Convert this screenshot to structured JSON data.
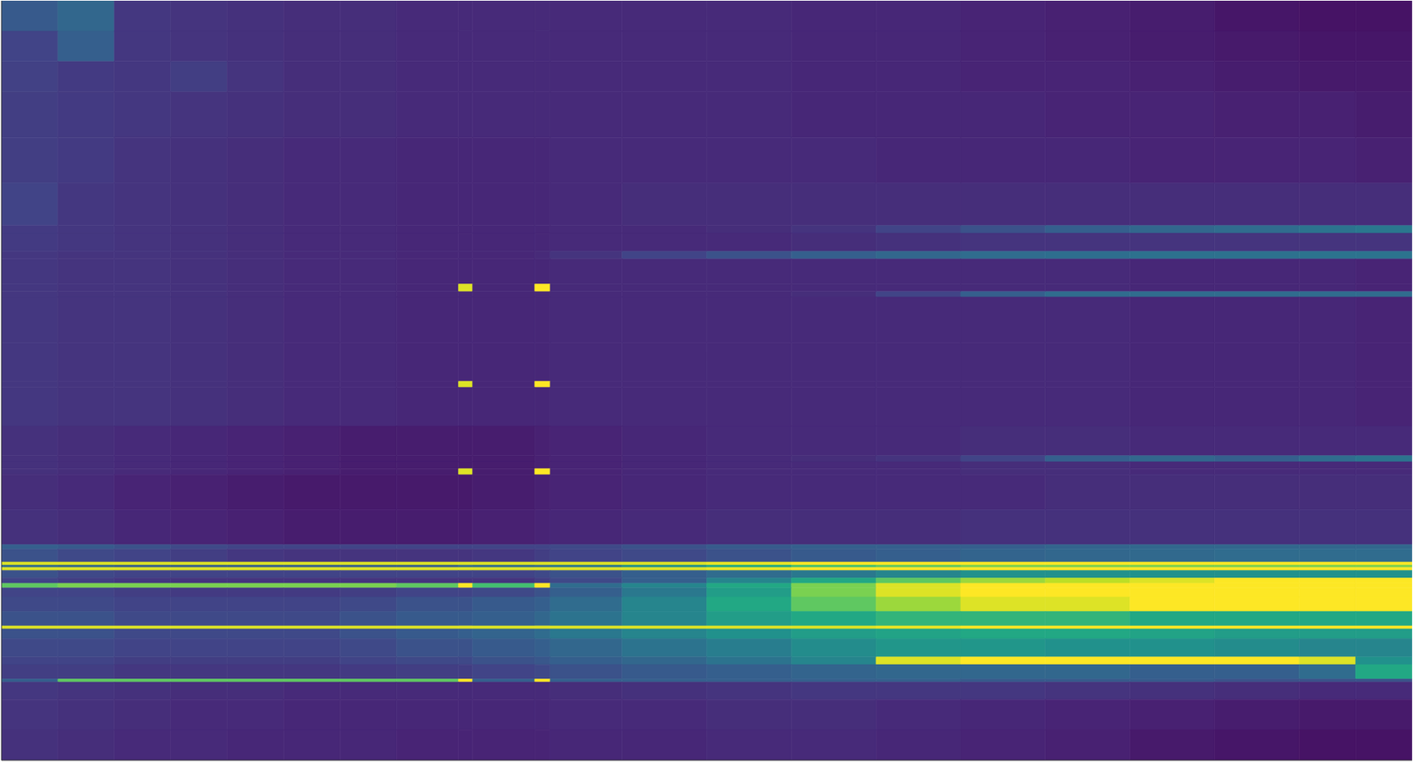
{
  "chart_data": {
    "type": "heatmap",
    "color": "viridis",
    "tick_labels": false,
    "xlim": [
      0,
      100
    ],
    "ylim": [
      0,
      100
    ],
    "zlim": [
      0,
      1
    ],
    "x_edges": [
      0,
      4,
      8,
      12,
      16,
      20,
      24,
      28,
      32.4,
      33.4,
      37.8,
      38.9,
      44,
      50,
      56,
      62,
      68,
      74,
      80,
      86,
      92,
      96,
      100
    ],
    "y_edges": [
      0,
      4,
      8,
      12,
      18,
      24,
      29.6,
      30.6,
      33,
      34,
      37.3,
      38.3,
      39,
      45,
      50.1,
      50.9,
      56,
      59.9,
      60.7,
      61.6,
      62.4,
      67,
      71.6,
      72.2,
      73.9,
      74.3,
      74.6,
      75,
      76,
      76.7,
      77.3,
      78.5,
      80.4,
      82.3,
      82.7,
      84,
      86.4,
      87.4,
      89.3,
      89.7,
      92,
      96,
      100
    ],
    "values": [
      [
        0.28,
        0.33,
        0.16,
        0.15,
        0.14,
        0.13,
        0.13,
        0.12,
        0.12,
        0.12,
        0.12,
        0.12,
        0.12,
        0.12,
        0.11,
        0.11,
        0.1,
        0.09,
        0.08,
        0.06,
        0.05,
        0.05
      ],
      [
        0.2,
        0.3,
        0.16,
        0.15,
        0.14,
        0.13,
        0.13,
        0.12,
        0.12,
        0.12,
        0.12,
        0.12,
        0.12,
        0.12,
        0.11,
        0.11,
        0.1,
        0.09,
        0.08,
        0.07,
        0.06,
        0.06
      ],
      [
        0.19,
        0.17,
        0.16,
        0.18,
        0.15,
        0.13,
        0.13,
        0.12,
        0.12,
        0.12,
        0.12,
        0.12,
        0.12,
        0.12,
        0.11,
        0.11,
        0.1,
        0.1,
        0.09,
        0.08,
        0.07,
        0.07
      ],
      [
        0.18,
        0.17,
        0.16,
        0.15,
        0.14,
        0.13,
        0.13,
        0.12,
        0.12,
        0.12,
        0.12,
        0.12,
        0.12,
        0.12,
        0.11,
        0.11,
        0.11,
        0.1,
        0.1,
        0.09,
        0.09,
        0.08
      ],
      [
        0.18,
        0.17,
        0.15,
        0.14,
        0.13,
        0.12,
        0.12,
        0.11,
        0.11,
        0.11,
        0.11,
        0.12,
        0.12,
        0.12,
        0.12,
        0.11,
        0.11,
        0.11,
        0.1,
        0.1,
        0.1,
        0.09
      ],
      [
        0.2,
        0.16,
        0.15,
        0.14,
        0.13,
        0.12,
        0.12,
        0.11,
        0.11,
        0.11,
        0.11,
        0.12,
        0.13,
        0.13,
        0.13,
        0.13,
        0.13,
        0.13,
        0.13,
        0.13,
        0.13,
        0.13
      ],
      [
        0.17,
        0.16,
        0.15,
        0.14,
        0.13,
        0.12,
        0.12,
        0.11,
        0.11,
        0.11,
        0.11,
        0.12,
        0.12,
        0.13,
        0.15,
        0.2,
        0.25,
        0.3,
        0.33,
        0.35,
        0.38,
        0.4
      ],
      [
        0.17,
        0.16,
        0.15,
        0.14,
        0.13,
        0.12,
        0.12,
        0.11,
        0.11,
        0.11,
        0.11,
        0.12,
        0.12,
        0.12,
        0.13,
        0.14,
        0.15,
        0.15,
        0.15,
        0.15,
        0.15,
        0.15
      ],
      [
        0.16,
        0.15,
        0.15,
        0.14,
        0.13,
        0.12,
        0.12,
        0.11,
        0.11,
        0.11,
        0.12,
        0.15,
        0.2,
        0.25,
        0.3,
        0.33,
        0.35,
        0.36,
        0.37,
        0.37,
        0.38,
        0.38
      ],
      [
        0.16,
        0.15,
        0.15,
        0.14,
        0.13,
        0.12,
        0.12,
        0.11,
        0.11,
        0.11,
        0.11,
        0.12,
        0.12,
        0.12,
        0.12,
        0.12,
        0.12,
        0.12,
        0.11,
        0.11,
        0.11,
        0.1
      ],
      [
        0.16,
        0.15,
        0.15,
        0.14,
        0.13,
        0.12,
        0.12,
        0.11,
        0.95,
        0.11,
        1,
        0.12,
        0.12,
        0.12,
        0.12,
        0.12,
        0.12,
        0.12,
        0.11,
        0.11,
        0.11,
        0.1
      ],
      [
        0.16,
        0.15,
        0.15,
        0.14,
        0.13,
        0.12,
        0.12,
        0.11,
        0.11,
        0.11,
        0.11,
        0.12,
        0.12,
        0.12,
        0.13,
        0.2,
        0.3,
        0.35,
        0.35,
        0.35,
        0.35,
        0.35
      ],
      [
        0.16,
        0.15,
        0.15,
        0.14,
        0.13,
        0.12,
        0.12,
        0.11,
        0.11,
        0.11,
        0.11,
        0.12,
        0.12,
        0.12,
        0.12,
        0.12,
        0.12,
        0.12,
        0.11,
        0.11,
        0.11,
        0.1
      ],
      [
        0.16,
        0.15,
        0.15,
        0.14,
        0.13,
        0.12,
        0.12,
        0.11,
        0.11,
        0.11,
        0.11,
        0.12,
        0.12,
        0.12,
        0.12,
        0.12,
        0.12,
        0.12,
        0.11,
        0.11,
        0.11,
        0.1
      ],
      [
        0.16,
        0.15,
        0.15,
        0.14,
        0.13,
        0.12,
        0.12,
        0.11,
        0.95,
        0.11,
        1,
        0.12,
        0.12,
        0.12,
        0.12,
        0.12,
        0.12,
        0.12,
        0.11,
        0.11,
        0.11,
        0.1
      ],
      [
        0.16,
        0.15,
        0.15,
        0.14,
        0.13,
        0.12,
        0.12,
        0.11,
        0.11,
        0.11,
        0.11,
        0.12,
        0.12,
        0.12,
        0.12,
        0.12,
        0.12,
        0.12,
        0.11,
        0.11,
        0.11,
        0.1
      ],
      [
        0.14,
        0.13,
        0.12,
        0.11,
        0.1,
        0.09,
        0.08,
        0.08,
        0.08,
        0.08,
        0.09,
        0.1,
        0.11,
        0.12,
        0.12,
        0.12,
        0.13,
        0.13,
        0.12,
        0.12,
        0.12,
        0.12
      ],
      [
        0.14,
        0.13,
        0.12,
        0.11,
        0.1,
        0.09,
        0.08,
        0.08,
        0.08,
        0.08,
        0.09,
        0.1,
        0.11,
        0.12,
        0.13,
        0.15,
        0.2,
        0.3,
        0.33,
        0.3,
        0.35,
        0.38
      ],
      [
        0.14,
        0.13,
        0.12,
        0.11,
        0.1,
        0.09,
        0.08,
        0.08,
        0.08,
        0.08,
        0.09,
        0.1,
        0.11,
        0.12,
        0.12,
        0.12,
        0.13,
        0.13,
        0.12,
        0.12,
        0.12,
        0.12
      ],
      [
        0.14,
        0.13,
        0.12,
        0.11,
        0.1,
        0.09,
        0.08,
        0.08,
        0.95,
        0.08,
        1,
        0.1,
        0.11,
        0.12,
        0.12,
        0.12,
        0.13,
        0.13,
        0.12,
        0.12,
        0.12,
        0.12
      ],
      [
        0.13,
        0.12,
        0.1,
        0.09,
        0.08,
        0.07,
        0.07,
        0.07,
        0.07,
        0.08,
        0.09,
        0.1,
        0.11,
        0.12,
        0.12,
        0.12,
        0.12,
        0.13,
        0.13,
        0.13,
        0.13,
        0.13
      ],
      [
        0.14,
        0.13,
        0.11,
        0.1,
        0.09,
        0.08,
        0.08,
        0.08,
        0.08,
        0.09,
        0.1,
        0.11,
        0.12,
        0.13,
        0.13,
        0.13,
        0.14,
        0.14,
        0.14,
        0.14,
        0.14,
        0.14
      ],
      [
        0.3,
        0.28,
        0.25,
        0.22,
        0.2,
        0.2,
        0.2,
        0.2,
        0.2,
        0.2,
        0.2,
        0.22,
        0.25,
        0.28,
        0.3,
        0.3,
        0.3,
        0.32,
        0.33,
        0.33,
        0.33,
        0.33
      ],
      [
        0.25,
        0.22,
        0.2,
        0.18,
        0.16,
        0.15,
        0.15,
        0.15,
        0.15,
        0.16,
        0.18,
        0.2,
        0.22,
        0.25,
        0.28,
        0.3,
        0.32,
        0.33,
        0.34,
        0.35,
        0.35,
        0.35
      ],
      [
        0.95,
        0.95,
        0.95,
        0.95,
        0.95,
        0.95,
        0.95,
        0.95,
        0.95,
        0.95,
        0.95,
        0.95,
        0.95,
        0.97,
        1,
        1,
        1,
        1,
        1,
        1,
        1,
        1
      ],
      [
        0.35,
        0.33,
        0.3,
        0.3,
        0.3,
        0.3,
        0.3,
        0.3,
        0.35,
        0.35,
        0.35,
        0.4,
        0.5,
        0.6,
        0.7,
        0.75,
        0.8,
        0.8,
        0.8,
        0.8,
        0.8,
        0.8
      ],
      [
        0.95,
        0.95,
        0.95,
        0.95,
        0.95,
        0.95,
        0.95,
        0.95,
        0.95,
        0.95,
        0.95,
        0.95,
        0.95,
        0.97,
        1,
        1,
        1,
        1,
        1,
        1,
        1,
        1
      ],
      [
        0.25,
        0.22,
        0.2,
        0.2,
        0.2,
        0.2,
        0.2,
        0.2,
        0.2,
        0.2,
        0.22,
        0.25,
        0.3,
        0.35,
        0.4,
        0.45,
        0.5,
        0.5,
        0.5,
        0.5,
        0.5,
        0.5
      ],
      [
        0.2,
        0.18,
        0.16,
        0.15,
        0.15,
        0.15,
        0.15,
        0.15,
        0.15,
        0.15,
        0.18,
        0.22,
        0.3,
        0.45,
        0.6,
        0.75,
        0.85,
        0.9,
        0.95,
        1,
        1,
        1
      ],
      [
        0.75,
        0.8,
        0.8,
        0.8,
        0.8,
        0.8,
        0.8,
        0.75,
        1,
        0.7,
        1,
        0.35,
        0.45,
        0.6,
        0.8,
        0.95,
        1,
        1,
        1,
        1,
        1,
        1
      ],
      [
        0.2,
        0.2,
        0.18,
        0.17,
        0.17,
        0.17,
        0.18,
        0.2,
        0.2,
        0.22,
        0.25,
        0.3,
        0.4,
        0.55,
        0.8,
        0.95,
        1,
        1,
        1,
        1,
        1,
        1
      ],
      [
        0.22,
        0.22,
        0.2,
        0.2,
        0.2,
        0.2,
        0.22,
        0.25,
        0.25,
        0.28,
        0.3,
        0.35,
        0.45,
        0.6,
        0.75,
        0.85,
        0.95,
        0.95,
        1,
        1,
        1,
        1
      ],
      [
        0.25,
        0.25,
        0.22,
        0.22,
        0.22,
        0.22,
        0.25,
        0.28,
        0.28,
        0.3,
        0.33,
        0.38,
        0.45,
        0.55,
        0.6,
        0.65,
        0.65,
        0.65,
        0.6,
        0.6,
        0.6,
        0.6
      ],
      [
        0.95,
        0.95,
        0.95,
        0.95,
        0.95,
        0.95,
        0.95,
        0.95,
        0.95,
        0.95,
        0.95,
        0.95,
        0.95,
        0.95,
        0.95,
        0.97,
        1,
        1,
        1,
        1,
        1,
        1
      ],
      [
        0.25,
        0.25,
        0.22,
        0.22,
        0.22,
        0.22,
        0.25,
        0.28,
        0.3,
        0.32,
        0.35,
        0.4,
        0.45,
        0.5,
        0.55,
        0.58,
        0.6,
        0.6,
        0.58,
        0.55,
        0.55,
        0.55
      ],
      [
        0.22,
        0.22,
        0.2,
        0.2,
        0.2,
        0.2,
        0.22,
        0.25,
        0.25,
        0.28,
        0.3,
        0.33,
        0.38,
        0.42,
        0.48,
        0.52,
        0.52,
        0.5,
        0.5,
        0.48,
        0.45,
        0.45
      ],
      [
        0.2,
        0.2,
        0.18,
        0.18,
        0.18,
        0.18,
        0.2,
        0.22,
        0.22,
        0.25,
        0.27,
        0.3,
        0.33,
        0.38,
        0.45,
        0.95,
        1,
        1,
        1,
        1,
        0.95,
        0.5
      ],
      [
        0.18,
        0.18,
        0.16,
        0.16,
        0.16,
        0.16,
        0.17,
        0.18,
        0.18,
        0.2,
        0.22,
        0.25,
        0.28,
        0.3,
        0.32,
        0.33,
        0.33,
        0.33,
        0.3,
        0.3,
        0.35,
        0.6
      ],
      [
        0.3,
        0.75,
        0.75,
        0.75,
        0.75,
        0.75,
        0.75,
        0.75,
        1,
        0.3,
        1,
        0.3,
        0.3,
        0.3,
        0.3,
        0.3,
        0.28,
        0.28,
        0.28,
        0.25,
        0.25,
        0.25
      ],
      [
        0.16,
        0.15,
        0.14,
        0.13,
        0.13,
        0.12,
        0.12,
        0.12,
        0.12,
        0.12,
        0.12,
        0.13,
        0.14,
        0.15,
        0.16,
        0.16,
        0.16,
        0.15,
        0.14,
        0.13,
        0.12,
        0.12
      ],
      [
        0.15,
        0.14,
        0.13,
        0.12,
        0.12,
        0.11,
        0.11,
        0.11,
        0.11,
        0.11,
        0.11,
        0.12,
        0.12,
        0.13,
        0.13,
        0.12,
        0.11,
        0.1,
        0.09,
        0.08,
        0.07,
        0.07
      ],
      [
        0.14,
        0.13,
        0.12,
        0.12,
        0.11,
        0.11,
        0.11,
        0.1,
        0.1,
        0.1,
        0.1,
        0.11,
        0.11,
        0.12,
        0.12,
        0.11,
        0.1,
        0.09,
        0.07,
        0.06,
        0.05,
        0.05
      ]
    ]
  }
}
